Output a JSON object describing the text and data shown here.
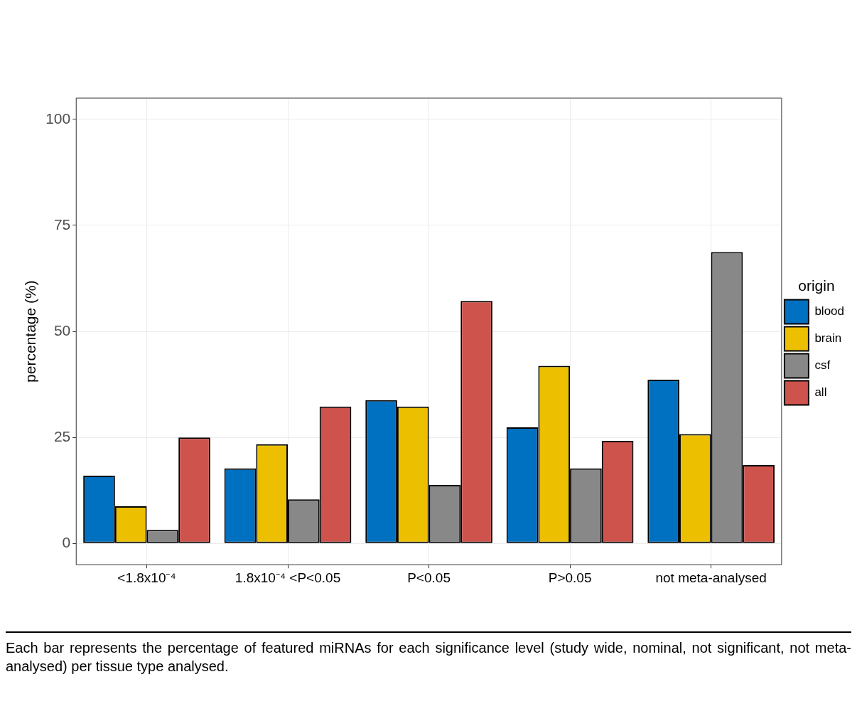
{
  "chart_data": {
    "type": "bar",
    "ylabel": "percentage (%)",
    "legend_title": "origin",
    "categories": [
      "<1.8x10⁻⁴",
      "1.8x10⁻⁴ <P<0.05",
      "P<0.05",
      "P>0.05",
      "not meta-analysed"
    ],
    "series": [
      {
        "name": "blood",
        "color": "#0070c0",
        "values": [
          16.0,
          17.7,
          33.8,
          27.4,
          38.6
        ]
      },
      {
        "name": "brain",
        "color": "#ecc000",
        "values": [
          8.8,
          23.4,
          32.3,
          41.9,
          25.8
        ]
      },
      {
        "name": "csf",
        "color": "#888888",
        "values": [
          3.2,
          10.4,
          13.8,
          17.7,
          68.7
        ]
      },
      {
        "name": "all",
        "color": "#cd534c",
        "values": [
          25,
          32.3,
          57.2,
          24.2,
          18.5
        ]
      }
    ],
    "ylim": [
      -5,
      105
    ],
    "yticks": [
      0,
      25,
      50,
      75,
      100
    ],
    "grid": true,
    "legend": "right",
    "annotations": [
      "Each bar represents the percentage of featured miRNAs for each significance level (study wide, nominal, not significant, not meta-analysed) per tissue type analysed."
    ]
  }
}
